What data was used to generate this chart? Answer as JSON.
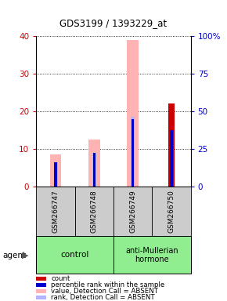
{
  "title": "GDS3199 / 1393229_at",
  "samples": [
    "GSM266747",
    "GSM266748",
    "GSM266749",
    "GSM266750"
  ],
  "ylim_left": [
    0,
    40
  ],
  "ylim_right": [
    0,
    100
  ],
  "yticks_left": [
    0,
    10,
    20,
    30,
    40
  ],
  "yticks_right": [
    0,
    25,
    50,
    75,
    100
  ],
  "ytick_labels_left": [
    "0",
    "10",
    "20",
    "30",
    "40"
  ],
  "ytick_labels_right": [
    "0",
    "25",
    "50",
    "75",
    "100%"
  ],
  "count_values": [
    0,
    0,
    0,
    22
  ],
  "percentile_rank_values": [
    6.5,
    9.0,
    18.0,
    15.0
  ],
  "value_absent_values": [
    8.5,
    12.5,
    39.0,
    0
  ],
  "rank_absent_values": [
    6.5,
    9.0,
    18.5,
    0
  ],
  "count_color": "#cc0000",
  "percentile_rank_color": "#0000cc",
  "value_absent_color": "#ffb3b3",
  "rank_absent_color": "#b3b3ff",
  "left_axis_color": "#cc0000",
  "right_axis_color": "#0000cc",
  "group1_label": "control",
  "group2_label": "anti-Mullerian\nhormone",
  "group_color": "#90EE90",
  "agent_label": "agent",
  "legend_items": [
    {
      "label": "count",
      "color": "#cc0000"
    },
    {
      "label": "percentile rank within the sample",
      "color": "#0000cc"
    },
    {
      "label": "value, Detection Call = ABSENT",
      "color": "#ffb3b3"
    },
    {
      "label": "rank, Detection Call = ABSENT",
      "color": "#b3b3ff"
    }
  ]
}
